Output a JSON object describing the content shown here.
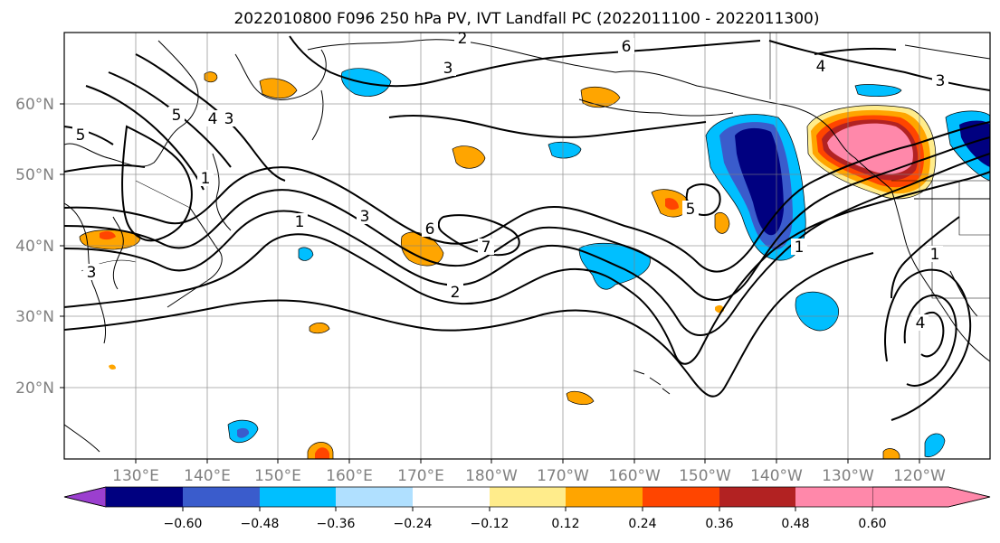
{
  "title": "2022010800 F096 250 hPa PV, IVT Landfall PC (2022011100 - 2022011300)",
  "lat_ticks": [
    "60°N",
    "50°N",
    "40°N",
    "30°N",
    "20°N"
  ],
  "lon_ticks": [
    "130°E",
    "140°E",
    "150°E",
    "160°E",
    "170°E",
    "180°W",
    "170°W",
    "160°W",
    "150°W",
    "140°W",
    "130°W",
    "120°W"
  ],
  "map": {
    "lon_range": [
      120,
      250
    ],
    "lat_range": [
      10,
      70
    ],
    "projection": "plate-carree",
    "grid": true
  },
  "colorbar": {
    "extend": "both",
    "colors": [
      "#9b3fcf",
      "#000080",
      "#3a5ccc",
      "#00bfff",
      "#b0e0ff",
      "#ffffff",
      "#ffec8b",
      "#ffa500",
      "#ff4500",
      "#b22222",
      "#ff88aa"
    ],
    "labels": [
      "−0.60",
      "−0.48",
      "−0.36",
      "−0.24",
      "−0.12",
      "0.12",
      "0.24",
      "0.36",
      "0.48",
      "0.60"
    ]
  },
  "contour_labels": [
    "2",
    "3",
    "6",
    "5",
    "4",
    "3",
    "1",
    "3",
    "6",
    "7",
    "2",
    "5",
    "1",
    "4",
    "3",
    "1",
    "4",
    "3",
    "5",
    "1"
  ]
}
